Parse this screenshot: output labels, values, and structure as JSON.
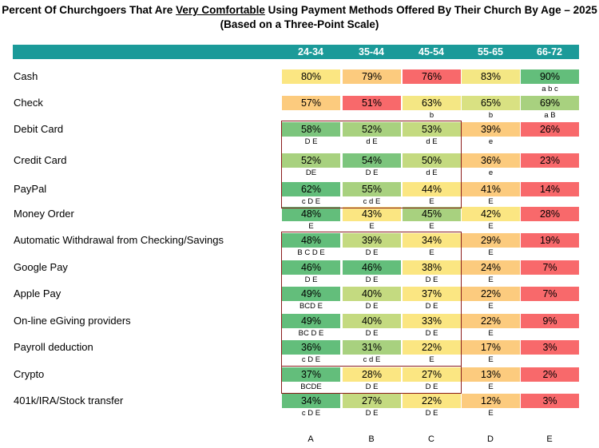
{
  "title_line1_pre": "Percent Of Churchgoers That Are ",
  "title_line1_emph": "Very Comfortable",
  "title_line1_post": " Using Payment Methods Offered By Their Church By Age – 2025",
  "title_line2": "(Based on a Three-Point Scale)",
  "colors": {
    "header": "#1b9a99",
    "box": "#8b1c1c"
  },
  "chart_data": {
    "type": "table",
    "title": "Percent Of Churchgoers That Are Very Comfortable Using Payment Methods Offered By Their Church By Age – 2025",
    "subtitle": "(Based on a Three-Point Scale)",
    "columns": [
      "24-34",
      "35-44",
      "45-54",
      "55-65",
      "66-72"
    ],
    "column_letters": [
      "A",
      "B",
      "C",
      "D",
      "E"
    ],
    "rows": [
      {
        "label": "Cash",
        "values": [
          80,
          79,
          76,
          83,
          90
        ],
        "display": [
          "80%",
          "79%",
          "76%",
          "83%",
          "90%"
        ],
        "sig": [
          "",
          "",
          "",
          "",
          "a b c"
        ]
      },
      {
        "label": "Check",
        "values": [
          57,
          51,
          63,
          65,
          69
        ],
        "display": [
          "57%",
          "51%",
          "63%",
          "65%",
          "69%"
        ],
        "sig": [
          "",
          "",
          "b",
          "b",
          "a B"
        ]
      },
      {
        "label": "Debit Card",
        "values": [
          58,
          52,
          53,
          39,
          26
        ],
        "display": [
          "58%",
          "52%",
          "53%",
          "39%",
          "26%"
        ],
        "sig": [
          "D E",
          "d E",
          "d E",
          "e",
          ""
        ]
      },
      {
        "label": "Credit Card",
        "values": [
          52,
          54,
          50,
          36,
          23
        ],
        "display": [
          "52%",
          "54%",
          "50%",
          "36%",
          "23%"
        ],
        "sig": [
          "DE",
          "D E",
          "d E",
          "e",
          ""
        ]
      },
      {
        "label": "PayPal",
        "values": [
          62,
          55,
          44,
          41,
          14
        ],
        "display": [
          "62%",
          "55%",
          "44%",
          "41%",
          "14%"
        ],
        "sig": [
          "c D E",
          "c d E",
          "E",
          "E",
          ""
        ]
      },
      {
        "label": "Money Order",
        "values": [
          48,
          43,
          45,
          42,
          28
        ],
        "display": [
          "48%",
          "43%",
          "45%",
          "42%",
          "28%"
        ],
        "sig": [
          "E",
          "E",
          "E",
          "E",
          ""
        ]
      },
      {
        "label": "Automatic Withdrawal from Checking/Savings",
        "values": [
          48,
          39,
          34,
          29,
          19
        ],
        "display": [
          "48%",
          "39%",
          "34%",
          "29%",
          "19%"
        ],
        "sig": [
          "B C D E",
          "D E",
          "E",
          "E",
          ""
        ]
      },
      {
        "label": "Google Pay",
        "values": [
          46,
          46,
          38,
          24,
          7
        ],
        "display": [
          "46%",
          "46%",
          "38%",
          "24%",
          "7%"
        ],
        "sig": [
          "D E",
          "D E",
          "D E",
          "E",
          ""
        ]
      },
      {
        "label": "Apple Pay",
        "values": [
          49,
          40,
          37,
          22,
          7
        ],
        "display": [
          "49%",
          "40%",
          "37%",
          "22%",
          "7%"
        ],
        "sig": [
          "BCD E",
          "D E",
          "D E",
          "E",
          ""
        ]
      },
      {
        "label": "On-line eGiving providers",
        "values": [
          49,
          40,
          33,
          22,
          9
        ],
        "display": [
          "49%",
          "40%",
          "33%",
          "22%",
          "9%"
        ],
        "sig": [
          "BC D E",
          "D E",
          "D E",
          "E",
          ""
        ]
      },
      {
        "label": "Payroll deduction",
        "values": [
          36,
          31,
          22,
          17,
          3
        ],
        "display": [
          "36%",
          "31%",
          "22%",
          "17%",
          "3%"
        ],
        "sig": [
          "c D E",
          "c d E",
          "E",
          "E",
          ""
        ]
      },
      {
        "label": "Crypto",
        "values": [
          37,
          28,
          27,
          13,
          2
        ],
        "display": [
          "37%",
          "28%",
          "27%",
          "13%",
          "2%"
        ],
        "sig": [
          "BCDE",
          "D E",
          "D E",
          "E",
          ""
        ]
      },
      {
        "label": "401k/IRA/Stock transfer",
        "values": [
          34,
          27,
          22,
          12,
          3
        ],
        "display": [
          "34%",
          "27%",
          "22%",
          "12%",
          "3%"
        ],
        "sig": [
          "c D E",
          "D E",
          "D E",
          "E",
          ""
        ]
      }
    ],
    "cell_colors": [
      [
        "#fbe682",
        "#fccb7e",
        "#f8696b",
        "#f4e784",
        "#63be7b"
      ],
      [
        "#fccb7e",
        "#f8696b",
        "#f4e784",
        "#d9e182",
        "#a8d17f"
      ],
      [
        "#7cc57d",
        "#a8d17f",
        "#c4da80",
        "#fccb7e",
        "#f8696b"
      ],
      [
        "#a8d17f",
        "#7cc57d",
        "#c4da80",
        "#fccb7e",
        "#f8696b"
      ],
      [
        "#63be7b",
        "#a8d17f",
        "#fbe682",
        "#fccb7e",
        "#f8696b"
      ],
      [
        "#63be7b",
        "#fbe682",
        "#a8d17f",
        "#fbe682",
        "#f8696b"
      ],
      [
        "#63be7b",
        "#c4da80",
        "#fbe682",
        "#fccb7e",
        "#f8696b"
      ],
      [
        "#63be7b",
        "#63be7b",
        "#fbe682",
        "#fccb7e",
        "#f8696b"
      ],
      [
        "#63be7b",
        "#c4da80",
        "#fbe682",
        "#fccb7e",
        "#f8696b"
      ],
      [
        "#63be7b",
        "#c4da80",
        "#fbe682",
        "#fccb7e",
        "#f8696b"
      ],
      [
        "#63be7b",
        "#a8d17f",
        "#fbe682",
        "#fccb7e",
        "#f8696b"
      ],
      [
        "#63be7b",
        "#fbe682",
        "#fbe682",
        "#fccb7e",
        "#f8696b"
      ],
      [
        "#63be7b",
        "#c4da80",
        "#fbe682",
        "#fccb7e",
        "#f8696b"
      ]
    ],
    "highlight_groups": [
      {
        "from_row": 2,
        "to_row": 4,
        "from_col": 0,
        "to_col": 2
      },
      {
        "from_row": 6,
        "to_row": 10,
        "from_col": 0,
        "to_col": 2
      },
      {
        "from_row": 11,
        "to_row": 11,
        "from_col": 0,
        "to_col": 2
      }
    ]
  }
}
